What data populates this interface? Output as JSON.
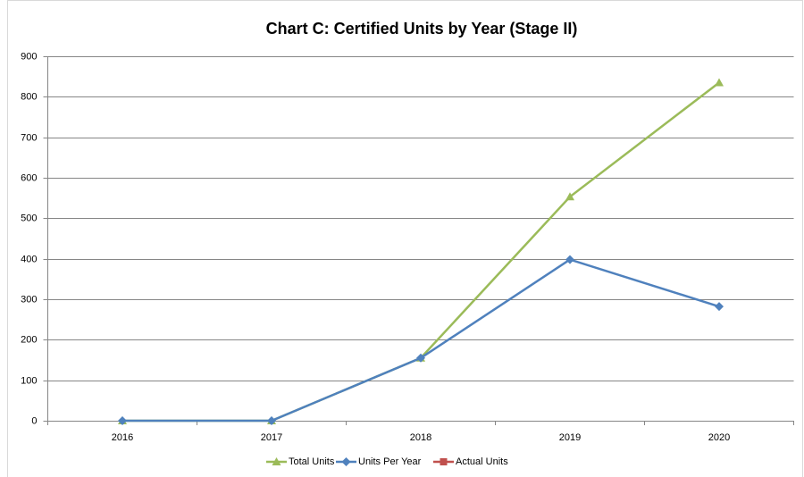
{
  "chart_data": {
    "type": "line",
    "title": "Chart C: Certified Units by Year (Stage II)",
    "categories": [
      "2016",
      "2017",
      "2018",
      "2019",
      "2020"
    ],
    "series": [
      {
        "name": "Total Units",
        "color": "#9bbb59",
        "marker": "triangle",
        "values": [
          0,
          0,
          155,
          553,
          835
        ]
      },
      {
        "name": "Units Per Year",
        "color": "#4f81bd",
        "marker": "diamond",
        "values": [
          0,
          0,
          155,
          398,
          282
        ]
      },
      {
        "name": "Actual Units",
        "color": "#c0504d",
        "marker": "square",
        "values": [
          null,
          null,
          null,
          null,
          null
        ]
      }
    ],
    "ylim": [
      0,
      900
    ],
    "yticks": [
      0,
      100,
      200,
      300,
      400,
      500,
      600,
      700,
      800,
      900
    ],
    "grid": true,
    "legend": "bottom"
  }
}
